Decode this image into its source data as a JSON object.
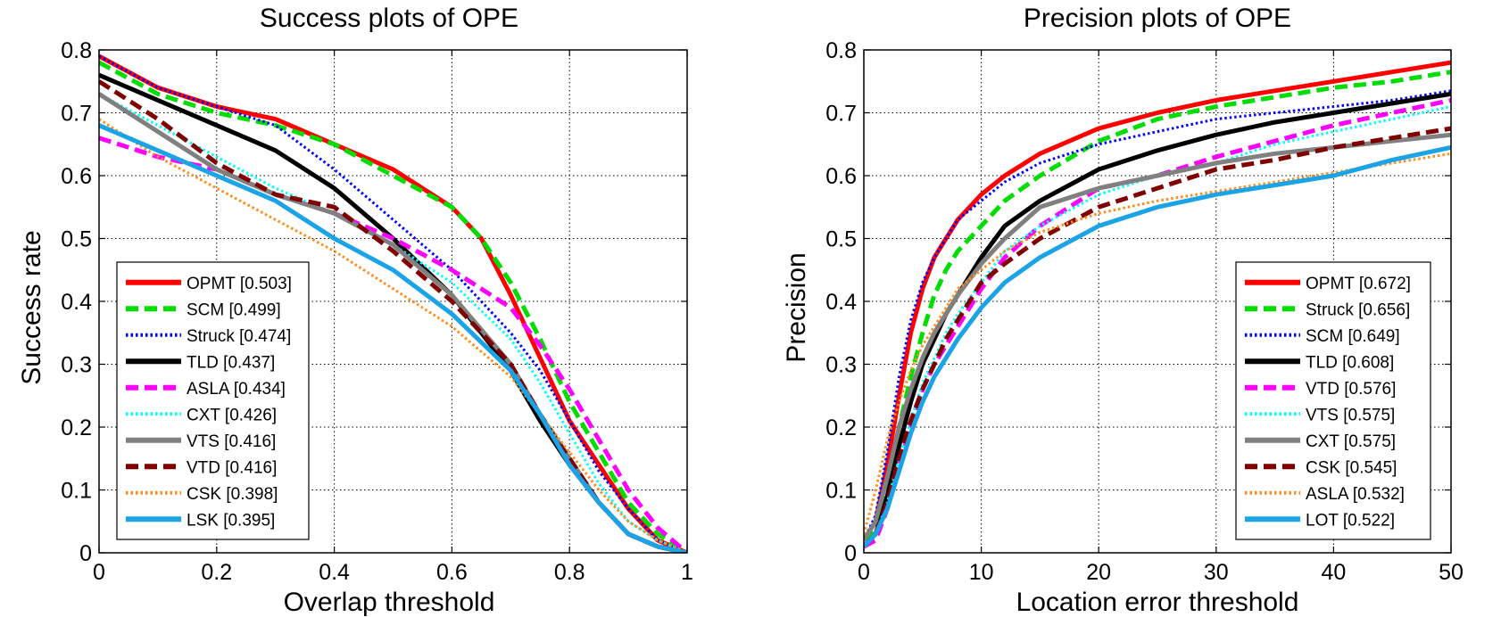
{
  "chart_data": [
    {
      "type": "line",
      "title": "Success plots of OPE",
      "xlabel": "Overlap threshold",
      "ylabel": "Success rate",
      "xlim": [
        0,
        1
      ],
      "ylim": [
        0,
        0.8
      ],
      "xticks": [
        0,
        0.2,
        0.4,
        0.6,
        0.8,
        1
      ],
      "xtick_labels": [
        "0",
        "0.2",
        "0.4",
        "0.6",
        "0.8",
        "1"
      ],
      "yticks": [
        0,
        0.1,
        0.2,
        0.3,
        0.4,
        0.5,
        0.6,
        0.7,
        0.8
      ],
      "ytick_labels": [
        "0",
        "0.1",
        "0.2",
        "0.3",
        "0.4",
        "0.5",
        "0.6",
        "0.7",
        "0.8"
      ],
      "grid": true,
      "legend_position": "bottom-left",
      "series": [
        {
          "name": "OPMT [0.503]",
          "color": "#ff0000",
          "style": "solid",
          "x": [
            0,
            0.1,
            0.2,
            0.3,
            0.4,
            0.5,
            0.6,
            0.65,
            0.7,
            0.75,
            0.8,
            0.85,
            0.9,
            0.95,
            1.0
          ],
          "y": [
            0.79,
            0.74,
            0.71,
            0.69,
            0.65,
            0.61,
            0.55,
            0.5,
            0.41,
            0.31,
            0.21,
            0.14,
            0.07,
            0.02,
            0.0
          ]
        },
        {
          "name": "SCM [0.499]",
          "color": "#00dd00",
          "style": "dashed",
          "x": [
            0,
            0.1,
            0.2,
            0.3,
            0.4,
            0.5,
            0.6,
            0.65,
            0.7,
            0.75,
            0.8,
            0.85,
            0.9,
            0.95,
            1.0
          ],
          "y": [
            0.78,
            0.73,
            0.7,
            0.68,
            0.65,
            0.6,
            0.55,
            0.5,
            0.43,
            0.34,
            0.24,
            0.16,
            0.08,
            0.03,
            0.0
          ]
        },
        {
          "name": "Struck [0.474]",
          "color": "#0000ff",
          "style": "dotted",
          "x": [
            0,
            0.1,
            0.2,
            0.3,
            0.4,
            0.5,
            0.6,
            0.7,
            0.75,
            0.8,
            0.85,
            0.9,
            0.95,
            1.0
          ],
          "y": [
            0.79,
            0.74,
            0.71,
            0.68,
            0.61,
            0.53,
            0.45,
            0.35,
            0.29,
            0.21,
            0.13,
            0.07,
            0.02,
            0.0
          ]
        },
        {
          "name": "TLD [0.437]",
          "color": "#000000",
          "style": "solid",
          "x": [
            0,
            0.1,
            0.2,
            0.3,
            0.4,
            0.5,
            0.6,
            0.7,
            0.75,
            0.8,
            0.85,
            0.9,
            0.95,
            1.0
          ],
          "y": [
            0.76,
            0.72,
            0.68,
            0.64,
            0.58,
            0.5,
            0.41,
            0.29,
            0.21,
            0.14,
            0.08,
            0.03,
            0.01,
            0.0
          ]
        },
        {
          "name": "ASLA [0.434]",
          "color": "#ff00ff",
          "style": "dashed",
          "x": [
            0,
            0.1,
            0.2,
            0.3,
            0.4,
            0.5,
            0.6,
            0.7,
            0.75,
            0.8,
            0.85,
            0.9,
            0.95,
            1.0
          ],
          "y": [
            0.66,
            0.63,
            0.61,
            0.57,
            0.54,
            0.5,
            0.45,
            0.39,
            0.33,
            0.26,
            0.18,
            0.1,
            0.04,
            0.0
          ]
        },
        {
          "name": "CXT [0.426]",
          "color": "#00ffff",
          "style": "dotted",
          "x": [
            0,
            0.1,
            0.2,
            0.3,
            0.4,
            0.5,
            0.6,
            0.7,
            0.75,
            0.8,
            0.85,
            0.9,
            0.95,
            1.0
          ],
          "y": [
            0.73,
            0.68,
            0.63,
            0.58,
            0.54,
            0.49,
            0.43,
            0.34,
            0.27,
            0.19,
            0.11,
            0.05,
            0.02,
            0.0
          ]
        },
        {
          "name": "VTS [0.416]",
          "color": "#808080",
          "style": "solid",
          "x": [
            0,
            0.1,
            0.2,
            0.3,
            0.4,
            0.5,
            0.6,
            0.7,
            0.75,
            0.8,
            0.85,
            0.9,
            0.95,
            1.0
          ],
          "y": [
            0.73,
            0.67,
            0.61,
            0.57,
            0.54,
            0.49,
            0.41,
            0.3,
            0.22,
            0.15,
            0.08,
            0.03,
            0.01,
            0.0
          ]
        },
        {
          "name": "VTD [0.416]",
          "color": "#800000",
          "style": "dashed",
          "x": [
            0,
            0.1,
            0.2,
            0.3,
            0.4,
            0.5,
            0.6,
            0.7,
            0.75,
            0.8,
            0.85,
            0.9,
            0.95,
            1.0
          ],
          "y": [
            0.75,
            0.69,
            0.62,
            0.57,
            0.55,
            0.48,
            0.4,
            0.3,
            0.22,
            0.15,
            0.08,
            0.03,
            0.01,
            0.0
          ]
        },
        {
          "name": "CSK [0.398]",
          "color": "#ff8c1a",
          "style": "dotted",
          "x": [
            0,
            0.1,
            0.2,
            0.3,
            0.4,
            0.5,
            0.6,
            0.7,
            0.75,
            0.8,
            0.85,
            0.9,
            0.95,
            1.0
          ],
          "y": [
            0.69,
            0.63,
            0.58,
            0.53,
            0.48,
            0.42,
            0.36,
            0.28,
            0.22,
            0.16,
            0.1,
            0.05,
            0.02,
            0.0
          ]
        },
        {
          "name": "LSK [0.395]",
          "color": "#1aa3e6",
          "style": "solid",
          "x": [
            0,
            0.1,
            0.2,
            0.3,
            0.4,
            0.5,
            0.6,
            0.7,
            0.75,
            0.8,
            0.85,
            0.9,
            0.95,
            1.0
          ],
          "y": [
            0.68,
            0.64,
            0.6,
            0.56,
            0.5,
            0.45,
            0.38,
            0.29,
            0.22,
            0.14,
            0.08,
            0.03,
            0.01,
            0.0
          ]
        }
      ]
    },
    {
      "type": "line",
      "title": "Precision plots of OPE",
      "xlabel": "Location error threshold",
      "ylabel": "Precision",
      "xlim": [
        0,
        50
      ],
      "ylim": [
        0,
        0.8
      ],
      "xticks": [
        0,
        10,
        20,
        30,
        40,
        50
      ],
      "xtick_labels": [
        "0",
        "10",
        "20",
        "30",
        "40",
        "50"
      ],
      "yticks": [
        0,
        0.1,
        0.2,
        0.3,
        0.4,
        0.5,
        0.6,
        0.7,
        0.8
      ],
      "ytick_labels": [
        "0",
        "0.1",
        "0.2",
        "0.3",
        "0.4",
        "0.5",
        "0.6",
        "0.7",
        "0.8"
      ],
      "grid": true,
      "legend_position": "bottom-right",
      "series": [
        {
          "name": "OPMT [0.672]",
          "color": "#ff0000",
          "style": "solid",
          "x": [
            0,
            1,
            2,
            3,
            4,
            5,
            6,
            7,
            8,
            10,
            12,
            15,
            20,
            25,
            30,
            35,
            40,
            45,
            50
          ],
          "y": [
            0.02,
            0.05,
            0.14,
            0.25,
            0.35,
            0.42,
            0.47,
            0.5,
            0.53,
            0.57,
            0.6,
            0.635,
            0.675,
            0.7,
            0.72,
            0.735,
            0.75,
            0.765,
            0.78
          ]
        },
        {
          "name": "Struck [0.656]",
          "color": "#00dd00",
          "style": "dashed",
          "x": [
            0,
            1,
            2,
            3,
            4,
            5,
            6,
            7,
            8,
            10,
            12,
            15,
            20,
            25,
            30,
            35,
            40,
            45,
            50
          ],
          "y": [
            0.02,
            0.04,
            0.11,
            0.2,
            0.28,
            0.35,
            0.41,
            0.45,
            0.48,
            0.52,
            0.56,
            0.6,
            0.655,
            0.69,
            0.71,
            0.725,
            0.74,
            0.75,
            0.765
          ]
        },
        {
          "name": "SCM [0.649]",
          "color": "#0000ff",
          "style": "dotted",
          "x": [
            0,
            1,
            2,
            3,
            4,
            5,
            6,
            7,
            8,
            10,
            12,
            15,
            20,
            25,
            30,
            35,
            40,
            45,
            50
          ],
          "y": [
            0.02,
            0.06,
            0.16,
            0.28,
            0.37,
            0.43,
            0.47,
            0.5,
            0.53,
            0.56,
            0.59,
            0.62,
            0.65,
            0.67,
            0.69,
            0.7,
            0.71,
            0.72,
            0.735
          ]
        },
        {
          "name": "TLD [0.608]",
          "color": "#000000",
          "style": "solid",
          "x": [
            0,
            1,
            2,
            3,
            4,
            5,
            6,
            7,
            8,
            10,
            12,
            15,
            20,
            25,
            30,
            35,
            40,
            45,
            50
          ],
          "y": [
            0.01,
            0.03,
            0.09,
            0.17,
            0.24,
            0.3,
            0.34,
            0.38,
            0.41,
            0.47,
            0.52,
            0.56,
            0.61,
            0.64,
            0.665,
            0.685,
            0.7,
            0.715,
            0.73
          ]
        },
        {
          "name": "VTD [0.576]",
          "color": "#ff00ff",
          "style": "dashed",
          "x": [
            0,
            1,
            2,
            3,
            4,
            5,
            6,
            7,
            8,
            10,
            12,
            15,
            20,
            25,
            30,
            35,
            40,
            45,
            50
          ],
          "y": [
            0.01,
            0.02,
            0.07,
            0.14,
            0.2,
            0.26,
            0.3,
            0.33,
            0.36,
            0.42,
            0.47,
            0.52,
            0.58,
            0.6,
            0.63,
            0.655,
            0.68,
            0.7,
            0.72
          ]
        },
        {
          "name": "VTS [0.575]",
          "color": "#00ffff",
          "style": "dotted",
          "x": [
            0,
            1,
            2,
            3,
            4,
            5,
            6,
            7,
            8,
            10,
            12,
            15,
            20,
            25,
            30,
            35,
            40,
            45,
            50
          ],
          "y": [
            0.01,
            0.03,
            0.08,
            0.15,
            0.21,
            0.27,
            0.31,
            0.35,
            0.38,
            0.43,
            0.48,
            0.52,
            0.57,
            0.6,
            0.62,
            0.65,
            0.67,
            0.69,
            0.71
          ]
        },
        {
          "name": "CXT [0.575]",
          "color": "#808080",
          "style": "solid",
          "x": [
            0,
            1,
            2,
            3,
            4,
            5,
            6,
            7,
            8,
            10,
            12,
            15,
            20,
            25,
            30,
            35,
            40,
            45,
            50
          ],
          "y": [
            0.02,
            0.05,
            0.12,
            0.2,
            0.26,
            0.31,
            0.35,
            0.38,
            0.41,
            0.46,
            0.5,
            0.55,
            0.58,
            0.6,
            0.62,
            0.635,
            0.645,
            0.655,
            0.665
          ]
        },
        {
          "name": "CSK [0.545]",
          "color": "#800000",
          "style": "dashed",
          "x": [
            0,
            1,
            2,
            3,
            4,
            5,
            6,
            7,
            8,
            10,
            12,
            15,
            20,
            25,
            30,
            35,
            40,
            45,
            50
          ],
          "y": [
            0.01,
            0.03,
            0.08,
            0.15,
            0.21,
            0.26,
            0.3,
            0.34,
            0.37,
            0.43,
            0.46,
            0.5,
            0.55,
            0.58,
            0.61,
            0.625,
            0.645,
            0.66,
            0.675
          ]
        },
        {
          "name": "ASLA [0.532]",
          "color": "#ff8c1a",
          "style": "dotted",
          "x": [
            0,
            1,
            2,
            3,
            4,
            5,
            6,
            7,
            8,
            10,
            12,
            15,
            20,
            25,
            30,
            35,
            40,
            45,
            50
          ],
          "y": [
            0.03,
            0.1,
            0.18,
            0.24,
            0.29,
            0.33,
            0.36,
            0.39,
            0.42,
            0.45,
            0.48,
            0.51,
            0.54,
            0.56,
            0.575,
            0.59,
            0.605,
            0.62,
            0.635
          ]
        },
        {
          "name": "LOT [0.522]",
          "color": "#1aa3e6",
          "style": "solid",
          "x": [
            0,
            1,
            2,
            3,
            4,
            5,
            6,
            7,
            8,
            10,
            12,
            15,
            20,
            25,
            30,
            35,
            40,
            45,
            50
          ],
          "y": [
            0.01,
            0.03,
            0.07,
            0.13,
            0.19,
            0.24,
            0.28,
            0.31,
            0.34,
            0.39,
            0.43,
            0.47,
            0.52,
            0.55,
            0.57,
            0.585,
            0.6,
            0.625,
            0.645
          ]
        }
      ]
    }
  ]
}
